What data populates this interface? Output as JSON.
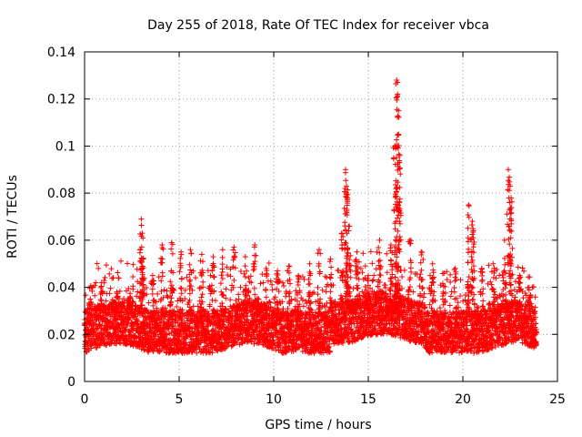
{
  "chart_data": {
    "type": "scatter",
    "title": "Day 255 of 2018, Rate Of TEC Index for receiver vbca",
    "xlabel": "GPS time / hours",
    "ylabel": "ROTI / TECUs",
    "xlim": [
      0,
      25
    ],
    "ylim": [
      0,
      0.14
    ],
    "xticks": [
      0,
      5,
      10,
      15,
      20,
      25
    ],
    "yticks": [
      0,
      0.02,
      0.04,
      0.06,
      0.08,
      0.1,
      0.12,
      0.14
    ],
    "xtick_labels": [
      "0",
      "5",
      "10",
      "15",
      "20",
      "25"
    ],
    "ytick_labels": [
      "0",
      "0.02",
      "0.04",
      "0.06",
      "0.08",
      "0.1",
      "0.12",
      "0.14"
    ],
    "grid": true,
    "marker": "+",
    "marker_color": "#ff0000",
    "series": [
      {
        "name": "ROTI",
        "description_points": "dense band ~0.01-0.04 TECU/min across 0-24 h with spikes",
        "x": [
          0.3,
          0.9,
          1.7,
          2.4,
          3.0,
          3.05,
          3.1,
          3.6,
          4.1,
          4.6,
          5.1,
          5.6,
          6.2,
          6.8,
          7.3,
          7.9,
          8.5,
          9.0,
          9.6,
          10.2,
          10.8,
          11.3,
          11.9,
          12.4,
          13.0,
          13.6,
          13.8,
          13.85,
          13.9,
          14.0,
          14.4,
          15.0,
          15.6,
          16.2,
          16.4,
          16.5,
          16.55,
          16.6,
          16.65,
          17.2,
          17.8,
          18.4,
          19.0,
          19.6,
          20.3,
          20.5,
          20.55,
          21.0,
          21.6,
          22.2,
          22.4,
          22.5,
          22.55,
          23.0,
          23.5
        ],
        "y": [
          0.035,
          0.042,
          0.038,
          0.036,
          0.069,
          0.063,
          0.052,
          0.045,
          0.058,
          0.059,
          0.055,
          0.056,
          0.054,
          0.053,
          0.056,
          0.057,
          0.053,
          0.058,
          0.048,
          0.047,
          0.049,
          0.045,
          0.05,
          0.056,
          0.052,
          0.063,
          0.09,
          0.083,
          0.078,
          0.066,
          0.055,
          0.045,
          0.06,
          0.058,
          0.1,
          0.128,
          0.122,
          0.105,
          0.093,
          0.06,
          0.055,
          0.05,
          0.046,
          0.048,
          0.075,
          0.068,
          0.064,
          0.048,
          0.05,
          0.06,
          0.09,
          0.083,
          0.078,
          0.045,
          0.04
        ]
      }
    ]
  }
}
